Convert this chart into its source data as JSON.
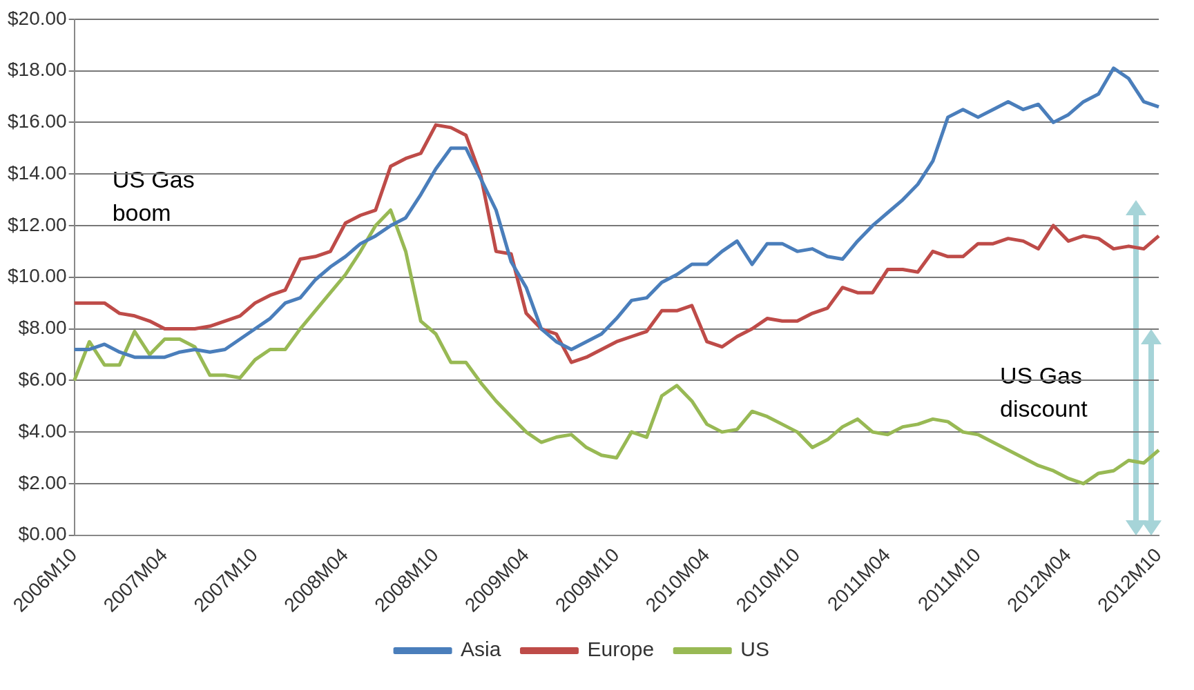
{
  "chart_data": {
    "type": "line",
    "categories": [
      "2006M10",
      null,
      null,
      null,
      null,
      null,
      "2007M04",
      null,
      null,
      null,
      null,
      null,
      "2007M10",
      null,
      null,
      null,
      null,
      null,
      "2008M04",
      null,
      null,
      null,
      null,
      null,
      "2008M10",
      null,
      null,
      null,
      null,
      null,
      "2009M04",
      null,
      null,
      null,
      null,
      null,
      "2009M10",
      null,
      null,
      null,
      null,
      null,
      "2010M04",
      null,
      null,
      null,
      null,
      null,
      "2010M10",
      null,
      null,
      null,
      null,
      null,
      "2011M04",
      null,
      null,
      null,
      null,
      null,
      "2011M10",
      null,
      null,
      null,
      null,
      null,
      "2012M04",
      null,
      null,
      null,
      null,
      null,
      "2012M10"
    ],
    "series": [
      {
        "name": "Asia",
        "color": "#4a7ebb",
        "values": [
          7.2,
          7.2,
          7.4,
          7.1,
          6.9,
          6.9,
          6.9,
          7.1,
          7.2,
          7.1,
          7.2,
          7.6,
          8.0,
          8.4,
          9.0,
          9.2,
          9.9,
          10.4,
          10.8,
          11.3,
          11.6,
          12.0,
          12.3,
          13.2,
          14.2,
          15.0,
          15.0,
          13.8,
          12.6,
          10.6,
          9.6,
          8.0,
          7.5,
          7.2,
          7.5,
          7.8,
          8.4,
          9.1,
          9.2,
          9.8,
          10.1,
          10.5,
          10.5,
          11.0,
          11.4,
          10.5,
          11.3,
          11.3,
          11.0,
          11.1,
          10.8,
          10.7,
          11.4,
          12.0,
          12.5,
          13.0,
          13.6,
          14.5,
          16.2,
          16.5,
          16.2,
          16.5,
          16.8,
          16.5,
          16.7,
          16.0,
          16.3,
          16.8,
          17.1,
          18.1,
          17.7,
          16.8,
          16.6
        ]
      },
      {
        "name": "Europe",
        "color": "#be4b48",
        "values": [
          9.0,
          9.0,
          9.0,
          8.6,
          8.5,
          8.3,
          8.0,
          8.0,
          8.0,
          8.1,
          8.3,
          8.5,
          9.0,
          9.3,
          9.5,
          10.7,
          10.8,
          11.0,
          12.1,
          12.4,
          12.6,
          14.3,
          14.6,
          14.8,
          15.9,
          15.8,
          15.5,
          13.9,
          11.0,
          10.9,
          8.6,
          8.0,
          7.8,
          6.7,
          6.9,
          7.2,
          7.5,
          7.7,
          7.9,
          8.7,
          8.7,
          8.9,
          7.5,
          7.3,
          7.7,
          8.0,
          8.4,
          8.3,
          8.3,
          8.6,
          8.8,
          9.6,
          9.4,
          9.4,
          10.3,
          10.3,
          10.2,
          11.0,
          10.8,
          10.8,
          11.3,
          11.3,
          11.5,
          11.4,
          11.1,
          12.0,
          11.4,
          11.6,
          11.5,
          11.1,
          11.2,
          11.1,
          11.6
        ]
      },
      {
        "name": "US",
        "color": "#98b954",
        "values": [
          6.0,
          7.5,
          6.6,
          6.6,
          7.9,
          7.0,
          7.6,
          7.6,
          7.3,
          6.2,
          6.2,
          6.1,
          6.8,
          7.2,
          7.2,
          8.0,
          8.7,
          9.4,
          10.1,
          11.0,
          12.0,
          12.6,
          11.0,
          8.3,
          7.8,
          6.7,
          6.7,
          5.9,
          5.2,
          4.6,
          4.0,
          3.6,
          3.8,
          3.9,
          3.4,
          3.1,
          3.0,
          4.0,
          3.8,
          5.4,
          5.8,
          5.2,
          4.3,
          4.0,
          4.1,
          4.8,
          4.6,
          4.3,
          4.0,
          3.4,
          3.7,
          4.2,
          4.5,
          4.0,
          3.9,
          4.2,
          4.3,
          4.5,
          4.4,
          4.0,
          3.9,
          3.6,
          3.3,
          3.0,
          2.7,
          2.5,
          2.2,
          2.0,
          2.4,
          2.5,
          2.9,
          2.8,
          3.3
        ]
      }
    ],
    "ylim": [
      0,
      20
    ],
    "yticks": [
      {
        "value": 0,
        "label": "$0.00"
      },
      {
        "value": 2,
        "label": "$2.00"
      },
      {
        "value": 4,
        "label": "$4.00"
      },
      {
        "value": 6,
        "label": "$6.00"
      },
      {
        "value": 8,
        "label": "$8.00"
      },
      {
        "value": 10,
        "label": "$10.00"
      },
      {
        "value": 12,
        "label": "$12.00"
      },
      {
        "value": 14,
        "label": "$14.00"
      },
      {
        "value": 16,
        "label": "$16.00"
      },
      {
        "value": 18,
        "label": "$18.00"
      },
      {
        "value": 20,
        "label": "$20.00"
      }
    ],
    "grid": "y",
    "legend": "bottom",
    "marker": "none",
    "line_style": "solid",
    "annotations": [
      "US Gas boom",
      "US Gas discount"
    ]
  }
}
